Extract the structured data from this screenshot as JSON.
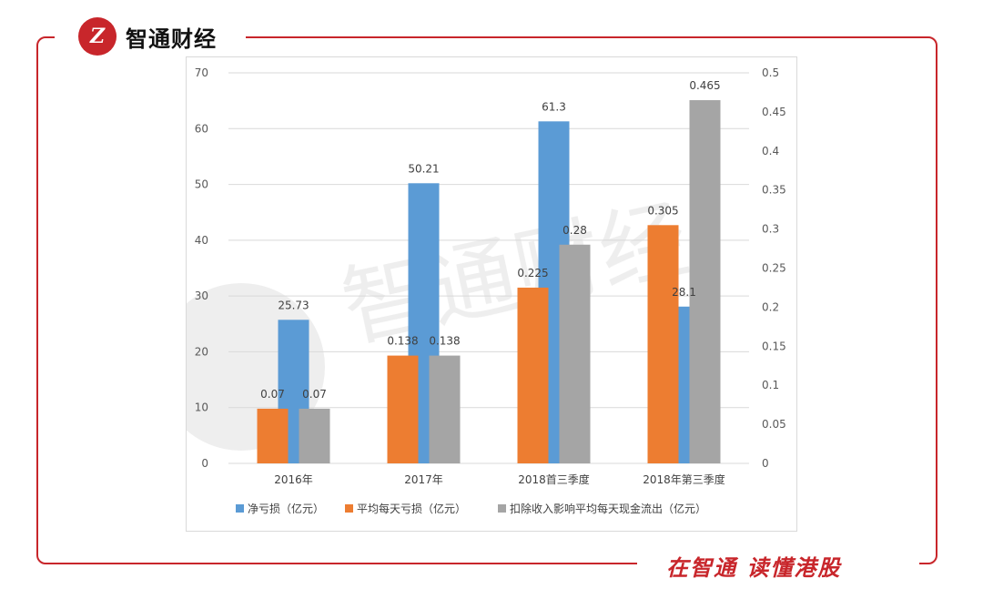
{
  "brand": {
    "name": "智通财经",
    "slogan": "在智通 读懂港股",
    "accent": "#c8262b"
  },
  "chart_data": {
    "type": "bar",
    "categories": [
      "2016年",
      "2017年",
      "2018首三季度",
      "2018年第三季度"
    ],
    "series": [
      {
        "name": "净亏损（亿元）",
        "axis": "left",
        "color": "#5b9bd5",
        "values": [
          25.73,
          50.21,
          61.3,
          28.1
        ],
        "labels": [
          "25.73",
          "50.21",
          "61.3",
          "28.1"
        ]
      },
      {
        "name": "平均每天亏损（亿元）",
        "axis": "right",
        "color": "#ed7d31",
        "values": [
          0.07,
          0.138,
          0.225,
          0.305
        ],
        "labels": [
          "0.07",
          "0.138",
          "0.225",
          "0.305"
        ]
      },
      {
        "name": "扣除收入影响平均每天现金流出（亿元）",
        "axis": "right",
        "color": "#a5a5a5",
        "values": [
          0.07,
          0.138,
          0.28,
          0.465
        ],
        "labels": [
          "0.07",
          "0.138",
          "0.28",
          "0.465"
        ]
      }
    ],
    "left_axis": {
      "range": [
        0,
        70
      ],
      "ticks": [
        "0",
        "10",
        "20",
        "30",
        "40",
        "50",
        "60",
        "70"
      ]
    },
    "right_axis": {
      "range": [
        0,
        0.5
      ],
      "ticks": [
        "0",
        "0.05",
        "0.1",
        "0.15",
        "0.2",
        "0.25",
        "0.3",
        "0.35",
        "0.4",
        "0.45",
        "0.5"
      ]
    },
    "grid": true,
    "legend_position": "bottom"
  }
}
